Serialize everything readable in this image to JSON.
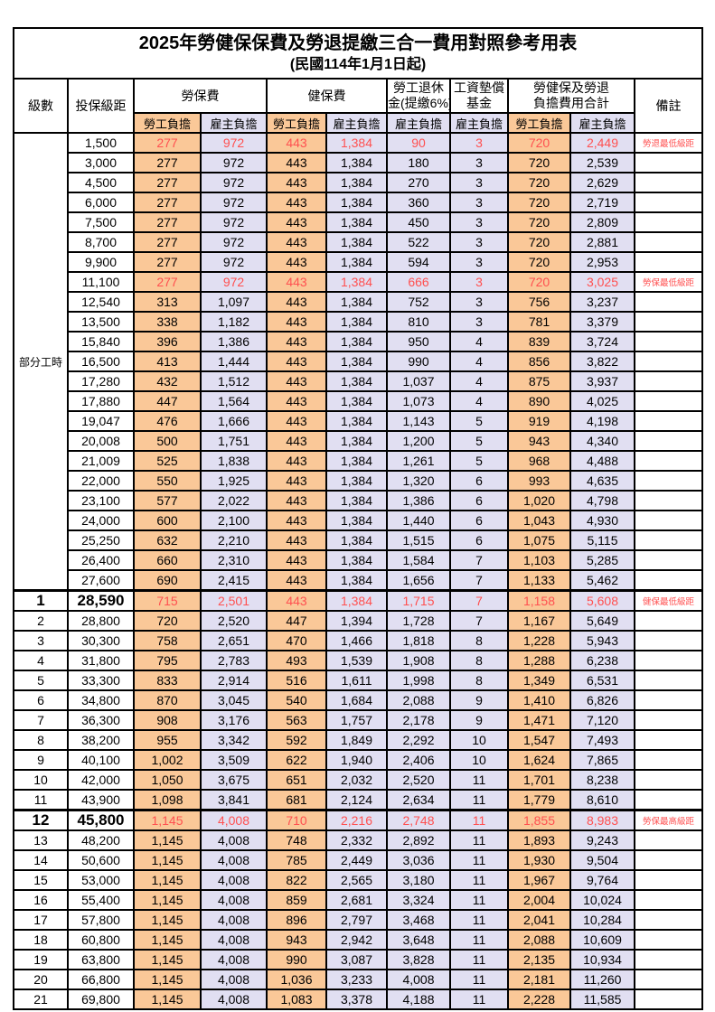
{
  "title": "2025年勞健保保費及勞退提繳三合一費用對照參考用表",
  "subtitle": "(民國114年1月1日起)",
  "header": {
    "level": "級數",
    "salary": "投保級距",
    "note": "備註",
    "groups": [
      {
        "name": "labor-insurance",
        "lines": [
          "勞保費",
          ""
        ],
        "cols": 2
      },
      {
        "name": "health-insurance",
        "lines": [
          "健保費",
          ""
        ],
        "cols": 2
      },
      {
        "name": "labor-pension",
        "lines": [
          "勞工退休",
          "金(提繳6%)"
        ],
        "cols": 1
      },
      {
        "name": "wage-arrears-fund",
        "lines": [
          "工資墊償",
          "基金"
        ],
        "cols": 1
      },
      {
        "name": "total-burden",
        "lines": [
          "勞健保及勞退",
          "負擔費用合計"
        ],
        "cols": 2
      }
    ],
    "sub": [
      "勞工負擔",
      "雇主負擔",
      "勞工負擔",
      "雇主負擔",
      "雇主負擔",
      "雇主負擔",
      "勞工負擔",
      "雇主負擔"
    ]
  },
  "colors": {
    "employee_bg": "#FAC898",
    "employer_bg": "#E1DFF2",
    "highlight_text": "#FF5050",
    "grid": "#000000"
  },
  "table": {
    "part_time_label": "部分工時",
    "part_time_rowspan": 23,
    "rows": [
      {
        "level": "",
        "salary": "1,500",
        "fees": [
          "277",
          "972",
          "443",
          "1,384",
          "90",
          "3",
          "720",
          "2,449"
        ],
        "note": "勞退最低級距",
        "red": true,
        "key": false
      },
      {
        "level": "",
        "salary": "3,000",
        "fees": [
          "277",
          "972",
          "443",
          "1,384",
          "180",
          "3",
          "720",
          "2,539"
        ],
        "note": "",
        "red": false,
        "key": false
      },
      {
        "level": "",
        "salary": "4,500",
        "fees": [
          "277",
          "972",
          "443",
          "1,384",
          "270",
          "3",
          "720",
          "2,629"
        ],
        "note": "",
        "red": false,
        "key": false
      },
      {
        "level": "",
        "salary": "6,000",
        "fees": [
          "277",
          "972",
          "443",
          "1,384",
          "360",
          "3",
          "720",
          "2,719"
        ],
        "note": "",
        "red": false,
        "key": false
      },
      {
        "level": "",
        "salary": "7,500",
        "fees": [
          "277",
          "972",
          "443",
          "1,384",
          "450",
          "3",
          "720",
          "2,809"
        ],
        "note": "",
        "red": false,
        "key": false
      },
      {
        "level": "",
        "salary": "8,700",
        "fees": [
          "277",
          "972",
          "443",
          "1,384",
          "522",
          "3",
          "720",
          "2,881"
        ],
        "note": "",
        "red": false,
        "key": false
      },
      {
        "level": "",
        "salary": "9,900",
        "fees": [
          "277",
          "972",
          "443",
          "1,384",
          "594",
          "3",
          "720",
          "2,953"
        ],
        "note": "",
        "red": false,
        "key": false
      },
      {
        "level": "",
        "salary": "11,100",
        "fees": [
          "277",
          "972",
          "443",
          "1,384",
          "666",
          "3",
          "720",
          "3,025"
        ],
        "note": "勞保最低級距",
        "red": true,
        "key": false
      },
      {
        "level": "",
        "salary": "12,540",
        "fees": [
          "313",
          "1,097",
          "443",
          "1,384",
          "752",
          "3",
          "756",
          "3,237"
        ],
        "note": "",
        "red": false,
        "key": false
      },
      {
        "level": "",
        "salary": "13,500",
        "fees": [
          "338",
          "1,182",
          "443",
          "1,384",
          "810",
          "3",
          "781",
          "3,379"
        ],
        "note": "",
        "red": false,
        "key": false
      },
      {
        "level": "",
        "salary": "15,840",
        "fees": [
          "396",
          "1,386",
          "443",
          "1,384",
          "950",
          "4",
          "839",
          "3,724"
        ],
        "note": "",
        "red": false,
        "key": false
      },
      {
        "level": "",
        "salary": "16,500",
        "fees": [
          "413",
          "1,444",
          "443",
          "1,384",
          "990",
          "4",
          "856",
          "3,822"
        ],
        "note": "",
        "red": false,
        "key": false
      },
      {
        "level": "",
        "salary": "17,280",
        "fees": [
          "432",
          "1,512",
          "443",
          "1,384",
          "1,037",
          "4",
          "875",
          "3,937"
        ],
        "note": "",
        "red": false,
        "key": false
      },
      {
        "level": "",
        "salary": "17,880",
        "fees": [
          "447",
          "1,564",
          "443",
          "1,384",
          "1,073",
          "4",
          "890",
          "4,025"
        ],
        "note": "",
        "red": false,
        "key": false
      },
      {
        "level": "",
        "salary": "19,047",
        "fees": [
          "476",
          "1,666",
          "443",
          "1,384",
          "1,143",
          "5",
          "919",
          "4,198"
        ],
        "note": "",
        "red": false,
        "key": false
      },
      {
        "level": "",
        "salary": "20,008",
        "fees": [
          "500",
          "1,751",
          "443",
          "1,384",
          "1,200",
          "5",
          "943",
          "4,340"
        ],
        "note": "",
        "red": false,
        "key": false
      },
      {
        "level": "",
        "salary": "21,009",
        "fees": [
          "525",
          "1,838",
          "443",
          "1,384",
          "1,261",
          "5",
          "968",
          "4,488"
        ],
        "note": "",
        "red": false,
        "key": false
      },
      {
        "level": "",
        "salary": "22,000",
        "fees": [
          "550",
          "1,925",
          "443",
          "1,384",
          "1,320",
          "6",
          "993",
          "4,635"
        ],
        "note": "",
        "red": false,
        "key": false
      },
      {
        "level": "",
        "salary": "23,100",
        "fees": [
          "577",
          "2,022",
          "443",
          "1,384",
          "1,386",
          "6",
          "1,020",
          "4,798"
        ],
        "note": "",
        "red": false,
        "key": false
      },
      {
        "level": "",
        "salary": "24,000",
        "fees": [
          "600",
          "2,100",
          "443",
          "1,384",
          "1,440",
          "6",
          "1,043",
          "4,930"
        ],
        "note": "",
        "red": false,
        "key": false
      },
      {
        "level": "",
        "salary": "25,250",
        "fees": [
          "632",
          "2,210",
          "443",
          "1,384",
          "1,515",
          "6",
          "1,075",
          "5,115"
        ],
        "note": "",
        "red": false,
        "key": false
      },
      {
        "level": "",
        "salary": "26,400",
        "fees": [
          "660",
          "2,310",
          "443",
          "1,384",
          "1,584",
          "7",
          "1,103",
          "5,285"
        ],
        "note": "",
        "red": false,
        "key": false
      },
      {
        "level": "",
        "salary": "27,600",
        "fees": [
          "690",
          "2,415",
          "443",
          "1,384",
          "1,656",
          "7",
          "1,133",
          "5,462"
        ],
        "note": "",
        "red": false,
        "key": false
      },
      {
        "level": "1",
        "salary": "28,590",
        "fees": [
          "715",
          "2,501",
          "443",
          "1,384",
          "1,715",
          "7",
          "1,158",
          "5,608"
        ],
        "note": "健保最低級距",
        "red": true,
        "key": true
      },
      {
        "level": "2",
        "salary": "28,800",
        "fees": [
          "720",
          "2,520",
          "447",
          "1,394",
          "1,728",
          "7",
          "1,167",
          "5,649"
        ],
        "note": "",
        "red": false,
        "key": false
      },
      {
        "level": "3",
        "salary": "30,300",
        "fees": [
          "758",
          "2,651",
          "470",
          "1,466",
          "1,818",
          "8",
          "1,228",
          "5,943"
        ],
        "note": "",
        "red": false,
        "key": false
      },
      {
        "level": "4",
        "salary": "31,800",
        "fees": [
          "795",
          "2,783",
          "493",
          "1,539",
          "1,908",
          "8",
          "1,288",
          "6,238"
        ],
        "note": "",
        "red": false,
        "key": false
      },
      {
        "level": "5",
        "salary": "33,300",
        "fees": [
          "833",
          "2,914",
          "516",
          "1,611",
          "1,998",
          "8",
          "1,349",
          "6,531"
        ],
        "note": "",
        "red": false,
        "key": false
      },
      {
        "level": "6",
        "salary": "34,800",
        "fees": [
          "870",
          "3,045",
          "540",
          "1,684",
          "2,088",
          "9",
          "1,410",
          "6,826"
        ],
        "note": "",
        "red": false,
        "key": false
      },
      {
        "level": "7",
        "salary": "36,300",
        "fees": [
          "908",
          "3,176",
          "563",
          "1,757",
          "2,178",
          "9",
          "1,471",
          "7,120"
        ],
        "note": "",
        "red": false,
        "key": false
      },
      {
        "level": "8",
        "salary": "38,200",
        "fees": [
          "955",
          "3,342",
          "592",
          "1,849",
          "2,292",
          "10",
          "1,547",
          "7,493"
        ],
        "note": "",
        "red": false,
        "key": false
      },
      {
        "level": "9",
        "salary": "40,100",
        "fees": [
          "1,002",
          "3,509",
          "622",
          "1,940",
          "2,406",
          "10",
          "1,624",
          "7,865"
        ],
        "note": "",
        "red": false,
        "key": false
      },
      {
        "level": "10",
        "salary": "42,000",
        "fees": [
          "1,050",
          "3,675",
          "651",
          "2,032",
          "2,520",
          "11",
          "1,701",
          "8,238"
        ],
        "note": "",
        "red": false,
        "key": false
      },
      {
        "level": "11",
        "salary": "43,900",
        "fees": [
          "1,098",
          "3,841",
          "681",
          "2,124",
          "2,634",
          "11",
          "1,779",
          "8,610"
        ],
        "note": "",
        "red": false,
        "key": false
      },
      {
        "level": "12",
        "salary": "45,800",
        "fees": [
          "1,145",
          "4,008",
          "710",
          "2,216",
          "2,748",
          "11",
          "1,855",
          "8,983"
        ],
        "note": "勞保最高級距",
        "red": true,
        "key": true
      },
      {
        "level": "13",
        "salary": "48,200",
        "fees": [
          "1,145",
          "4,008",
          "748",
          "2,332",
          "2,892",
          "11",
          "1,893",
          "9,243"
        ],
        "note": "",
        "red": false,
        "key": false
      },
      {
        "level": "14",
        "salary": "50,600",
        "fees": [
          "1,145",
          "4,008",
          "785",
          "2,449",
          "3,036",
          "11",
          "1,930",
          "9,504"
        ],
        "note": "",
        "red": false,
        "key": false
      },
      {
        "level": "15",
        "salary": "53,000",
        "fees": [
          "1,145",
          "4,008",
          "822",
          "2,565",
          "3,180",
          "11",
          "1,967",
          "9,764"
        ],
        "note": "",
        "red": false,
        "key": false
      },
      {
        "level": "16",
        "salary": "55,400",
        "fees": [
          "1,145",
          "4,008",
          "859",
          "2,681",
          "3,324",
          "11",
          "2,004",
          "10,024"
        ],
        "note": "",
        "red": false,
        "key": false
      },
      {
        "level": "17",
        "salary": "57,800",
        "fees": [
          "1,145",
          "4,008",
          "896",
          "2,797",
          "3,468",
          "11",
          "2,041",
          "10,284"
        ],
        "note": "",
        "red": false,
        "key": false
      },
      {
        "level": "18",
        "salary": "60,800",
        "fees": [
          "1,145",
          "4,008",
          "943",
          "2,942",
          "3,648",
          "11",
          "2,088",
          "10,609"
        ],
        "note": "",
        "red": false,
        "key": false
      },
      {
        "level": "19",
        "salary": "63,800",
        "fees": [
          "1,145",
          "4,008",
          "990",
          "3,087",
          "3,828",
          "11",
          "2,135",
          "10,934"
        ],
        "note": "",
        "red": false,
        "key": false
      },
      {
        "level": "20",
        "salary": "66,800",
        "fees": [
          "1,145",
          "4,008",
          "1,036",
          "3,233",
          "4,008",
          "11",
          "2,181",
          "11,260"
        ],
        "note": "",
        "red": false,
        "key": false
      },
      {
        "level": "21",
        "salary": "69,800",
        "fees": [
          "1,145",
          "4,008",
          "1,083",
          "3,378",
          "4,188",
          "11",
          "2,228",
          "11,585"
        ],
        "note": "",
        "red": false,
        "key": false
      }
    ]
  }
}
